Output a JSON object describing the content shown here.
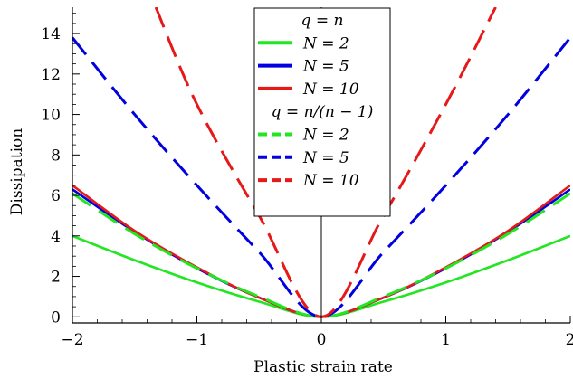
{
  "chart_data": {
    "type": "line",
    "xlabel": "Plastic strain rate",
    "ylabel": "Dissipation",
    "xlim": [
      -2,
      2
    ],
    "ylim": [
      -0.3,
      15.3
    ],
    "x_ticks": [
      -2,
      -1,
      0,
      1,
      2
    ],
    "x_tick_labels": [
      "−2",
      "−1",
      "0",
      "1",
      "2"
    ],
    "y_ticks": [
      0,
      2,
      4,
      6,
      8,
      10,
      12,
      14
    ],
    "y_tick_labels": [
      "0",
      "2",
      "4",
      "6",
      "8",
      "10",
      "12",
      "14"
    ],
    "grid": false,
    "legend_position": "top-center",
    "legend_groups": [
      {
        "heading": "q = n",
        "style": "solid"
      },
      {
        "heading": "q = n/(n − 1)",
        "style": "dashed"
      }
    ],
    "series": [
      {
        "name": "N = 2",
        "group": "q = n",
        "style": "solid",
        "color": "#22e622",
        "x": [
          -2,
          -1.5,
          -1,
          -0.5,
          0,
          0.5,
          1,
          1.5,
          2
        ],
        "y": [
          4.0,
          2.8,
          1.7,
          0.75,
          0.0,
          0.75,
          1.7,
          2.8,
          4.0
        ]
      },
      {
        "name": "N = 5",
        "group": "q = n",
        "style": "solid",
        "color": "#0000e0",
        "x": [
          -2,
          -1.5,
          -1,
          -0.5,
          0,
          0.5,
          1,
          1.5,
          2
        ],
        "y": [
          6.3,
          4.2,
          2.4,
          0.95,
          0.0,
          0.95,
          2.4,
          4.2,
          6.3
        ]
      },
      {
        "name": "N = 10",
        "group": "q = n",
        "style": "solid",
        "color": "#e61919",
        "x": [
          -2,
          -1.5,
          -1,
          -0.5,
          0,
          0.5,
          1,
          1.5,
          2
        ],
        "y": [
          6.5,
          4.25,
          2.45,
          0.95,
          0.0,
          0.95,
          2.45,
          4.25,
          6.5
        ]
      },
      {
        "name": "N = 2",
        "group": "q = n/(n − 1)",
        "style": "dashed",
        "color": "#22e622",
        "x": [
          -2,
          -1.5,
          -1,
          -0.5,
          0,
          0.5,
          1,
          1.5,
          2
        ],
        "y": [
          6.1,
          4.1,
          2.4,
          1.0,
          0.0,
          1.0,
          2.4,
          4.1,
          6.1
        ]
      },
      {
        "name": "N = 5",
        "group": "q = n/(n − 1)",
        "style": "dashed",
        "color": "#0000e0",
        "x": [
          -2,
          -1.5,
          -1,
          -0.5,
          0,
          0.5,
          1,
          1.5,
          2
        ],
        "y": [
          13.8,
          10.0,
          6.5,
          3.2,
          0.0,
          3.2,
          6.5,
          10.0,
          13.8
        ]
      },
      {
        "name": "N = 10",
        "group": "q = n/(n − 1)",
        "style": "dashed",
        "color": "#e61919",
        "x": [
          -1.33,
          -1,
          -0.5,
          0,
          0.5,
          1,
          1.4
        ],
        "y": [
          15.3,
          10.5,
          5.0,
          0.0,
          5.0,
          10.5,
          15.3
        ]
      }
    ]
  }
}
